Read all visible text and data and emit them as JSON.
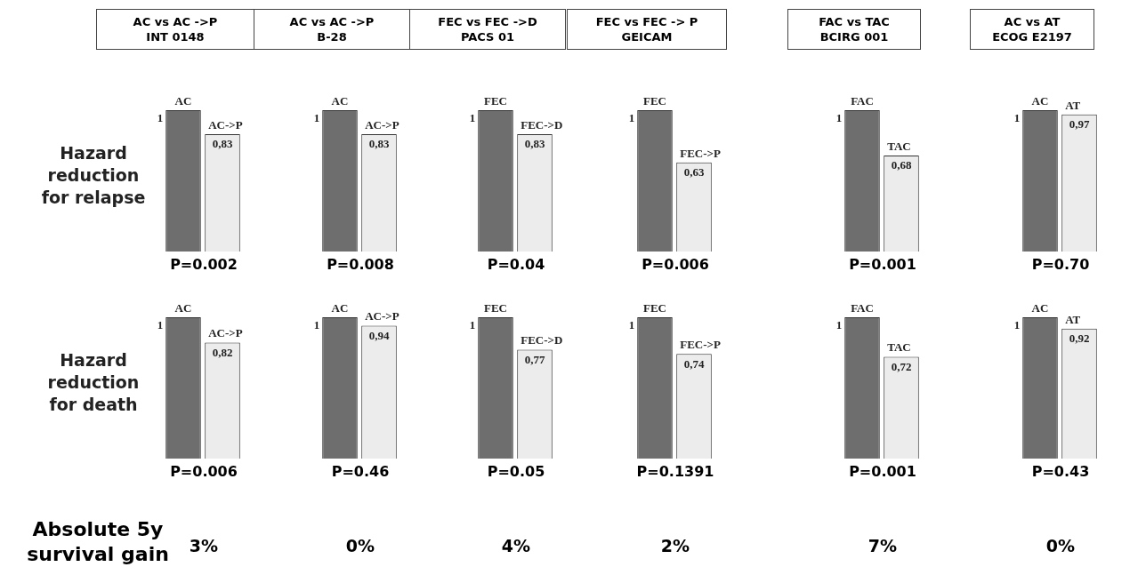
{
  "chart_data": [
    {
      "type": "bar",
      "title": "AC vs AC ->P\nINT 0148",
      "ylabel": "Hazard\nreduction\nfor relapse",
      "categories": [
        "AC",
        "AC->P"
      ],
      "values": [
        1,
        0.83
      ],
      "value_labels": [
        "1",
        "0,83"
      ],
      "colors": [
        "#6e6e6e",
        "#ececec"
      ],
      "annotations": [
        "P=0.002"
      ]
    },
    {
      "type": "bar",
      "title": "AC vs AC ->P\nB-28",
      "categories": [
        "AC",
        "AC->P"
      ],
      "values": [
        1,
        0.83
      ],
      "value_labels": [
        "1",
        "0,83"
      ],
      "colors": [
        "#6e6e6e",
        "#ececec"
      ],
      "annotations": [
        "P=0.008"
      ]
    },
    {
      "type": "bar",
      "title": "FEC vs FEC ->D\nPACS 01",
      "categories": [
        "FEC",
        "FEC->D"
      ],
      "values": [
        1,
        0.83
      ],
      "value_labels": [
        "1",
        "0,83"
      ],
      "colors": [
        "#6e6e6e",
        "#ececec"
      ],
      "annotations": [
        "P=0.04"
      ]
    },
    {
      "type": "bar",
      "title": "FEC vs FEC -> P\nGEICAM",
      "categories": [
        "FEC",
        "FEC->P"
      ],
      "values": [
        1,
        0.63
      ],
      "value_labels": [
        "1",
        "0,63"
      ],
      "colors": [
        "#6e6e6e",
        "#ececec"
      ],
      "annotations": [
        "P=0.006"
      ]
    },
    {
      "type": "bar",
      "title": "FAC vs TAC\nBCIRG 001",
      "categories": [
        "FAC",
        "TAC"
      ],
      "values": [
        1,
        0.68
      ],
      "value_labels": [
        "1",
        "0,68"
      ],
      "colors": [
        "#6e6e6e",
        "#ececec"
      ],
      "annotations": [
        "P=0.001"
      ]
    },
    {
      "type": "bar",
      "title": "AC vs AT\nECOG E2197",
      "categories": [
        "AC",
        "AT"
      ],
      "values": [
        1,
        0.97
      ],
      "value_labels": [
        "1",
        "0,97"
      ],
      "colors": [
        "#6e6e6e",
        "#ececec"
      ],
      "annotations": [
        "P=0.70"
      ]
    },
    {
      "type": "bar",
      "ylabel": "Hazard\nreduction\nfor death",
      "categories": [
        "AC",
        "AC->P"
      ],
      "values": [
        1,
        0.82
      ],
      "value_labels": [
        "1",
        "0,82"
      ],
      "colors": [
        "#6e6e6e",
        "#ececec"
      ],
      "annotations": [
        "P=0.006"
      ]
    },
    {
      "type": "bar",
      "categories": [
        "AC",
        "AC->P"
      ],
      "values": [
        1,
        0.94
      ],
      "value_labels": [
        "1",
        "0,94"
      ],
      "colors": [
        "#6e6e6e",
        "#ececec"
      ],
      "annotations": [
        "P=0.46"
      ]
    },
    {
      "type": "bar",
      "categories": [
        "FEC",
        "FEC->D"
      ],
      "values": [
        1,
        0.77
      ],
      "value_labels": [
        "1",
        "0,77"
      ],
      "colors": [
        "#6e6e6e",
        "#ececec"
      ],
      "annotations": [
        "P=0.05"
      ]
    },
    {
      "type": "bar",
      "categories": [
        "FEC",
        "FEC->P"
      ],
      "values": [
        1,
        0.74
      ],
      "value_labels": [
        "1",
        "0,74"
      ],
      "colors": [
        "#6e6e6e",
        "#ececec"
      ],
      "annotations": [
        "P=0.1391"
      ]
    },
    {
      "type": "bar",
      "categories": [
        "FAC",
        "TAC"
      ],
      "values": [
        1,
        0.72
      ],
      "value_labels": [
        "1",
        "0,72"
      ],
      "colors": [
        "#6e6e6e",
        "#ececec"
      ],
      "annotations": [
        "P=0.001"
      ]
    },
    {
      "type": "bar",
      "categories": [
        "AC",
        "AT"
      ],
      "values": [
        1,
        0.92
      ],
      "value_labels": [
        "1",
        "0,92"
      ],
      "colors": [
        "#6e6e6e",
        "#ececec"
      ],
      "annotations": [
        "P=0.43"
      ]
    },
    {
      "type": "other",
      "title": "Absolute 5y\nsurvival gain",
      "annotations": [
        "3%",
        "0%",
        "4%",
        "2%",
        "7%",
        "0%"
      ]
    }
  ]
}
